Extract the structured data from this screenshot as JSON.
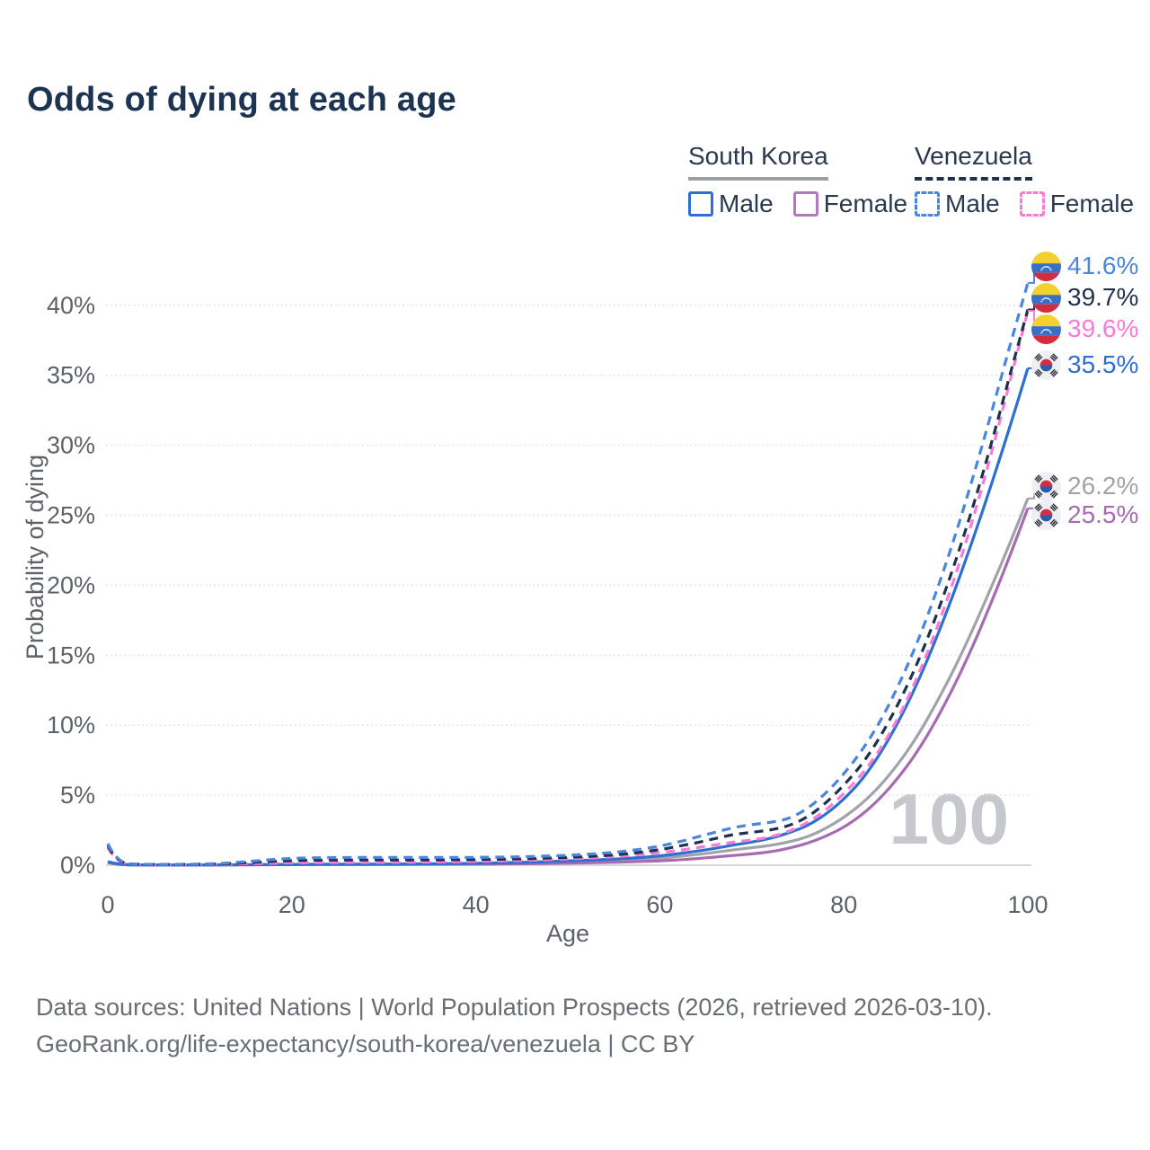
{
  "title": "Odds of dying at each age",
  "legend": {
    "groups": [
      {
        "label": "South Korea",
        "line_style": "solid",
        "line_color": "#9aa0a6",
        "items": [
          {
            "label": "Male",
            "color": "#2e6fd2",
            "dashed": false
          },
          {
            "label": "Female",
            "color": "#b478c0",
            "dashed": false
          }
        ]
      },
      {
        "label": "Venezuela",
        "line_style": "dashed",
        "line_color": "#1f3150",
        "items": [
          {
            "label": "Male",
            "color": "#4a85de",
            "dashed": true
          },
          {
            "label": "Female",
            "color": "#fb79d7",
            "dashed": true
          }
        ]
      }
    ]
  },
  "chart_data": {
    "type": "line",
    "title": "Odds of dying at each age",
    "xlabel": "Age",
    "ylabel": "Probability of dying",
    "watermark": "100",
    "xlim": [
      0,
      100
    ],
    "ylim_percent": [
      0,
      43
    ],
    "x_ticks": [
      0,
      20,
      40,
      60,
      80,
      100
    ],
    "y_ticks_percent": [
      0,
      5,
      10,
      15,
      20,
      25,
      30,
      35,
      40
    ],
    "grid": "horizontal-dotted",
    "legend_position": "top-right",
    "series": [
      {
        "name": "Venezuela male",
        "color": "#4a85de",
        "dashed": true,
        "end_label": {
          "text": "41.6%",
          "flag": "venezuela"
        },
        "points": [
          [
            0,
            1.55
          ],
          [
            1,
            0.12
          ],
          [
            4,
            0.06
          ],
          [
            8,
            0.06
          ],
          [
            12,
            0.1
          ],
          [
            15,
            0.25
          ],
          [
            18,
            0.42
          ],
          [
            21,
            0.52
          ],
          [
            25,
            0.55
          ],
          [
            30,
            0.55
          ],
          [
            35,
            0.55
          ],
          [
            40,
            0.55
          ],
          [
            45,
            0.6
          ],
          [
            50,
            0.7
          ],
          [
            54,
            0.85
          ],
          [
            57,
            1.05
          ],
          [
            60,
            1.35
          ],
          [
            62,
            1.65
          ],
          [
            64,
            2.0
          ],
          [
            66,
            2.35
          ],
          [
            68,
            2.7
          ],
          [
            70,
            2.9
          ],
          [
            72,
            3.05
          ],
          [
            74,
            3.3
          ],
          [
            76,
            4.0
          ],
          [
            78,
            5.1
          ],
          [
            80,
            6.5
          ],
          [
            82,
            8.2
          ],
          [
            84,
            10.3
          ],
          [
            86,
            12.9
          ],
          [
            88,
            15.9
          ],
          [
            90,
            19.4
          ],
          [
            92,
            23.3
          ],
          [
            94,
            27.6
          ],
          [
            96,
            32.2
          ],
          [
            98,
            37.0
          ],
          [
            100,
            41.6
          ]
        ]
      },
      {
        "name": "Venezuela both sexes",
        "color": "#1f3150",
        "dashed": true,
        "end_label": {
          "text": "39.7%",
          "flag": "venezuela"
        },
        "points": [
          [
            0,
            1.4
          ],
          [
            1,
            0.1
          ],
          [
            4,
            0.05
          ],
          [
            8,
            0.05
          ],
          [
            12,
            0.08
          ],
          [
            15,
            0.17
          ],
          [
            18,
            0.28
          ],
          [
            21,
            0.35
          ],
          [
            25,
            0.37
          ],
          [
            30,
            0.37
          ],
          [
            35,
            0.38
          ],
          [
            40,
            0.4
          ],
          [
            45,
            0.45
          ],
          [
            50,
            0.55
          ],
          [
            54,
            0.68
          ],
          [
            57,
            0.85
          ],
          [
            60,
            1.1
          ],
          [
            62,
            1.35
          ],
          [
            64,
            1.6
          ],
          [
            66,
            1.9
          ],
          [
            68,
            2.2
          ],
          [
            70,
            2.35
          ],
          [
            72,
            2.5
          ],
          [
            74,
            2.8
          ],
          [
            76,
            3.4
          ],
          [
            78,
            4.4
          ],
          [
            80,
            5.7
          ],
          [
            82,
            7.2
          ],
          [
            84,
            9.2
          ],
          [
            86,
            11.6
          ],
          [
            88,
            14.4
          ],
          [
            90,
            17.7
          ],
          [
            92,
            21.4
          ],
          [
            94,
            25.5
          ],
          [
            96,
            30.0
          ],
          [
            98,
            34.9
          ],
          [
            100,
            39.7
          ]
        ]
      },
      {
        "name": "Venezuela female",
        "color": "#fb79d7",
        "dashed": true,
        "end_label": {
          "text": "39.6%",
          "flag": "venezuela"
        },
        "points": [
          [
            0,
            1.25
          ],
          [
            1,
            0.09
          ],
          [
            4,
            0.04
          ],
          [
            8,
            0.04
          ],
          [
            12,
            0.06
          ],
          [
            15,
            0.1
          ],
          [
            18,
            0.15
          ],
          [
            21,
            0.18
          ],
          [
            25,
            0.19
          ],
          [
            30,
            0.2
          ],
          [
            35,
            0.22
          ],
          [
            40,
            0.26
          ],
          [
            45,
            0.33
          ],
          [
            50,
            0.44
          ],
          [
            54,
            0.56
          ],
          [
            57,
            0.7
          ],
          [
            60,
            0.9
          ],
          [
            62,
            1.05
          ],
          [
            64,
            1.25
          ],
          [
            66,
            1.45
          ],
          [
            68,
            1.65
          ],
          [
            70,
            1.8
          ],
          [
            72,
            2.0
          ],
          [
            74,
            2.4
          ],
          [
            76,
            3.0
          ],
          [
            78,
            3.9
          ],
          [
            80,
            5.1
          ],
          [
            82,
            6.5
          ],
          [
            84,
            8.3
          ],
          [
            86,
            10.6
          ],
          [
            88,
            13.4
          ],
          [
            90,
            16.7
          ],
          [
            92,
            20.4
          ],
          [
            94,
            24.6
          ],
          [
            96,
            29.3
          ],
          [
            98,
            34.4
          ],
          [
            100,
            39.6
          ]
        ]
      },
      {
        "name": "South Korea male",
        "color": "#2e6fd2",
        "dashed": false,
        "end_label": {
          "text": "35.5%",
          "flag": "south-korea"
        },
        "points": [
          [
            0,
            0.26
          ],
          [
            1,
            0.03
          ],
          [
            5,
            0.01
          ],
          [
            10,
            0.02
          ],
          [
            15,
            0.03
          ],
          [
            20,
            0.06
          ],
          [
            25,
            0.07
          ],
          [
            30,
            0.08
          ],
          [
            35,
            0.1
          ],
          [
            40,
            0.13
          ],
          [
            45,
            0.2
          ],
          [
            50,
            0.3
          ],
          [
            54,
            0.4
          ],
          [
            57,
            0.5
          ],
          [
            60,
            0.66
          ],
          [
            62,
            0.82
          ],
          [
            64,
            1.0
          ],
          [
            66,
            1.2
          ],
          [
            68,
            1.45
          ],
          [
            70,
            1.65
          ],
          [
            72,
            1.9
          ],
          [
            74,
            2.3
          ],
          [
            76,
            2.8
          ],
          [
            78,
            3.6
          ],
          [
            80,
            4.7
          ],
          [
            82,
            6.1
          ],
          [
            84,
            8.0
          ],
          [
            86,
            10.3
          ],
          [
            88,
            13.0
          ],
          [
            90,
            16.1
          ],
          [
            92,
            19.5
          ],
          [
            94,
            23.2
          ],
          [
            96,
            27.1
          ],
          [
            98,
            31.2
          ],
          [
            100,
            35.5
          ]
        ]
      },
      {
        "name": "South Korea both sexes",
        "color": "#a2a3aa",
        "dashed": false,
        "end_label": {
          "text": "26.2%",
          "flag": "south-korea"
        },
        "points": [
          [
            0,
            0.23
          ],
          [
            1,
            0.025
          ],
          [
            5,
            0.01
          ],
          [
            10,
            0.015
          ],
          [
            15,
            0.025
          ],
          [
            20,
            0.05
          ],
          [
            25,
            0.055
          ],
          [
            30,
            0.065
          ],
          [
            35,
            0.08
          ],
          [
            40,
            0.1
          ],
          [
            45,
            0.15
          ],
          [
            50,
            0.22
          ],
          [
            54,
            0.3
          ],
          [
            57,
            0.38
          ],
          [
            60,
            0.5
          ],
          [
            62,
            0.62
          ],
          [
            64,
            0.76
          ],
          [
            66,
            0.92
          ],
          [
            68,
            1.1
          ],
          [
            70,
            1.25
          ],
          [
            72,
            1.4
          ],
          [
            74,
            1.65
          ],
          [
            76,
            2.0
          ],
          [
            78,
            2.6
          ],
          [
            80,
            3.4
          ],
          [
            82,
            4.4
          ],
          [
            84,
            5.7
          ],
          [
            86,
            7.3
          ],
          [
            88,
            9.2
          ],
          [
            90,
            11.5
          ],
          [
            92,
            14.0
          ],
          [
            94,
            16.8
          ],
          [
            96,
            19.8
          ],
          [
            98,
            22.9
          ],
          [
            100,
            26.2
          ]
        ]
      },
      {
        "name": "South Korea female",
        "color": "#a76bb2",
        "dashed": false,
        "end_label": {
          "text": "25.5%",
          "flag": "south-korea"
        },
        "points": [
          [
            0,
            0.2
          ],
          [
            1,
            0.02
          ],
          [
            5,
            0.008
          ],
          [
            10,
            0.01
          ],
          [
            15,
            0.02
          ],
          [
            20,
            0.04
          ],
          [
            25,
            0.045
          ],
          [
            30,
            0.05
          ],
          [
            35,
            0.06
          ],
          [
            40,
            0.075
          ],
          [
            45,
            0.1
          ],
          [
            50,
            0.14
          ],
          [
            54,
            0.19
          ],
          [
            57,
            0.24
          ],
          [
            60,
            0.31
          ],
          [
            62,
            0.38
          ],
          [
            64,
            0.47
          ],
          [
            66,
            0.58
          ],
          [
            68,
            0.7
          ],
          [
            70,
            0.8
          ],
          [
            72,
            0.95
          ],
          [
            74,
            1.2
          ],
          [
            76,
            1.55
          ],
          [
            78,
            2.05
          ],
          [
            80,
            2.7
          ],
          [
            82,
            3.6
          ],
          [
            84,
            4.8
          ],
          [
            86,
            6.3
          ],
          [
            88,
            8.1
          ],
          [
            90,
            10.3
          ],
          [
            92,
            12.8
          ],
          [
            94,
            15.6
          ],
          [
            96,
            18.7
          ],
          [
            98,
            22.0
          ],
          [
            100,
            25.5
          ]
        ]
      }
    ]
  },
  "footer": {
    "line1": "Data sources: United Nations | World Population Prospects (2026, retrieved 2026-03-10).",
    "line2": "GeoRank.org/life-expectancy/south-korea/venezuela | CC BY"
  },
  "colors": {
    "title": "#1c3452",
    "tick_text": "#5d6269",
    "grid": "#e3e4e7",
    "axis_line": "#d7d8db",
    "watermark": "#c6c8cd",
    "footer": "#686e76"
  }
}
